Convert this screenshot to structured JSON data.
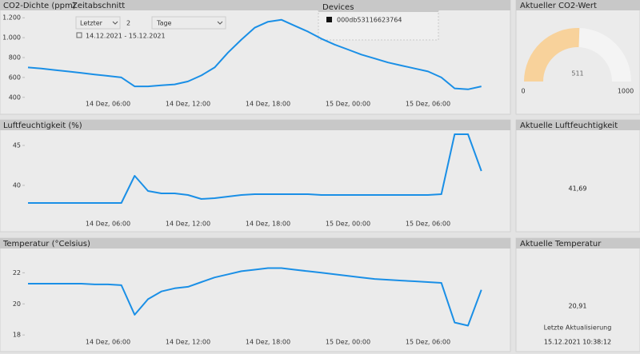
{
  "chart_data": [
    {
      "type": "line",
      "title": "CO2-Dichte (ppm)",
      "color": "#1a8fe6",
      "categories": [
        null,
        null,
        null,
        null,
        null,
        null,
        "14 Dez, 06:00",
        null,
        null,
        null,
        null,
        null,
        "14 Dez, 12:00",
        null,
        null,
        null,
        null,
        null,
        "14 Dez, 18:00",
        null,
        null,
        null,
        null,
        null,
        "15 Dez, 00:00",
        null,
        null,
        null,
        null,
        null,
        "15 Dez, 06:00",
        null,
        null,
        null,
        null
      ],
      "values": [
        700,
        690,
        675,
        660,
        645,
        630,
        615,
        600,
        510,
        510,
        520,
        530,
        560,
        620,
        700,
        850,
        980,
        1100,
        1160,
        1180,
        1120,
        1060,
        990,
        930,
        880,
        830,
        790,
        750,
        720,
        690,
        660,
        600,
        490,
        480,
        510
      ],
      "ylim": [
        350,
        1250
      ],
      "yticks": [
        400,
        600,
        800,
        {
          "value": 1000,
          "label": "1.000"
        },
        {
          "value": 1200,
          "label": "1.200"
        }
      ]
    },
    {
      "type": "line",
      "title": "Luftfeuchtigkeit (%)",
      "color": "#1a8fe6",
      "categories": [
        null,
        null,
        null,
        null,
        null,
        null,
        "14 Dez, 06:00",
        null,
        null,
        null,
        null,
        null,
        "14 Dez, 12:00",
        null,
        null,
        null,
        null,
        null,
        "14 Dez, 18:00",
        null,
        null,
        null,
        null,
        null,
        "15 Dez, 00:00",
        null,
        null,
        null,
        null,
        null,
        "15 Dez, 06:00",
        null,
        null,
        null,
        null
      ],
      "values": [
        37.8,
        37.8,
        37.8,
        37.8,
        37.8,
        37.8,
        37.8,
        37.8,
        41.2,
        39.3,
        39,
        39,
        38.8,
        38.3,
        38.4,
        38.6,
        38.8,
        38.9,
        38.9,
        38.9,
        38.9,
        38.9,
        38.8,
        38.8,
        38.8,
        38.8,
        38.8,
        38.8,
        38.8,
        38.8,
        38.8,
        38.9,
        46.4,
        46.4,
        41.8
      ],
      "ylim": [
        36,
        47
      ],
      "yticks": [
        40,
        45
      ]
    },
    {
      "type": "line",
      "title": "Temperatur (°Celsius)",
      "color": "#1a8fe6",
      "categories": [
        null,
        null,
        null,
        null,
        null,
        null,
        "14 Dez, 06:00",
        null,
        null,
        null,
        null,
        null,
        "14 Dez, 12:00",
        null,
        null,
        null,
        null,
        null,
        "14 Dez, 18:00",
        null,
        null,
        null,
        null,
        null,
        "15 Dez, 00:00",
        null,
        null,
        null,
        null,
        null,
        "15 Dez, 06:00",
        null,
        null,
        null,
        null
      ],
      "values": [
        21.3,
        21.3,
        21.3,
        21.3,
        21.3,
        21.25,
        21.25,
        21.2,
        19.3,
        20.3,
        20.8,
        21,
        21.1,
        21.4,
        21.7,
        21.9,
        22.1,
        22.2,
        22.3,
        22.3,
        22.2,
        22.1,
        22,
        21.9,
        21.8,
        21.7,
        21.6,
        21.55,
        21.5,
        21.45,
        21.4,
        21.35,
        18.8,
        18.6,
        20.9
      ],
      "ylim": [
        17.7,
        23.2
      ],
      "yticks": [
        18,
        20,
        22
      ]
    },
    {
      "type": "gauge",
      "title": "Aktueller CO2-Wert",
      "value": 511,
      "min": 0,
      "max": 1000,
      "color": "#f8d29b"
    }
  ],
  "slicer": {
    "title": "Zeitabschnitt",
    "mode": "Letzter",
    "count": "2",
    "unit": "Tage",
    "range": "14.12.2021 - 15.12.2021"
  },
  "devices": {
    "title": "Devices",
    "items": [
      "000db53116623764"
    ]
  },
  "cards": [
    {
      "title": "Aktuelle Luftfeuchtigkeit",
      "value": "41,69"
    },
    {
      "title": "Aktuelle Temperatur",
      "value": "20,91",
      "caption": "Letzte Aktualisierung",
      "timestamp": "15.12.2021 10:38:12"
    }
  ]
}
